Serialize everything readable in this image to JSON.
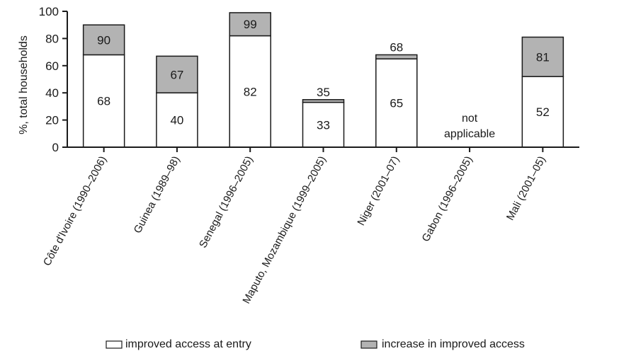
{
  "chart_data": {
    "type": "bar",
    "stacked": true,
    "title": "",
    "xlabel": "",
    "ylabel": "%, total households",
    "ylim": [
      0,
      100
    ],
    "yticks": [
      0,
      20,
      40,
      60,
      80,
      100
    ],
    "grid": false,
    "legend_position": "bottom",
    "categories": [
      "Côte d'Ivoire (1990–2006)",
      "Guinea (1989–98)",
      "Senegal (1996–2005)",
      "Maputo, Mozambique (1999–2005)",
      "Niger (2001–07)",
      "Gabon (1996–2005)",
      "Mali (2001–05)"
    ],
    "series": [
      {
        "name": "improved access at entry",
        "color": "#ffffff",
        "values": [
          68,
          40,
          82,
          33,
          65,
          null,
          52
        ]
      },
      {
        "name": "increase in improved access",
        "color": "#b3b3b3",
        "values": [
          22,
          27,
          17,
          2,
          3,
          null,
          29
        ]
      }
    ],
    "bar_labels": {
      "entry": [
        "68",
        "40",
        "82",
        "33",
        "65",
        "",
        "52"
      ],
      "total": [
        "90",
        "67",
        "99",
        "35",
        "68",
        "",
        "81"
      ]
    },
    "annotations": [
      {
        "category": "Gabon (1996–2005)",
        "lines": [
          "not",
          "applicable"
        ]
      }
    ]
  }
}
